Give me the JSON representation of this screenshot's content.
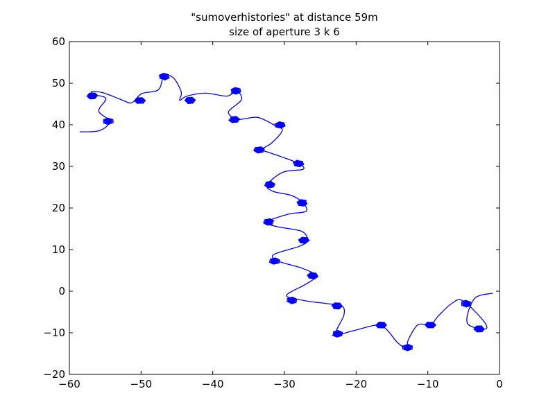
{
  "chart_data": {
    "type": "line",
    "title": "\"sumoverhistories\" at distance 59m",
    "subtitle": "size of aperture 3 k 6",
    "xlabel": "",
    "ylabel": "",
    "xlim": [
      -60,
      0
    ],
    "ylim": [
      -20,
      60
    ],
    "grid": false,
    "xticks": [
      -60,
      -50,
      -40,
      -30,
      -20,
      -10,
      0
    ],
    "yticks": [
      -20,
      -10,
      0,
      10,
      20,
      30,
      40,
      50,
      60
    ],
    "xtick_labels": [
      "−60",
      "−50",
      "−40",
      "−30",
      "−20",
      "−10",
      "0"
    ],
    "ytick_labels": [
      "−20",
      "−10",
      "0",
      "10",
      "20",
      "30",
      "40",
      "50",
      "60"
    ],
    "series": [
      {
        "color": "#0000ff",
        "spiral_centers": [
          [
            -56.8,
            46.9
          ],
          [
            -54.6,
            40.8
          ],
          [
            -50.2,
            45.8
          ],
          [
            -46.8,
            51.6
          ],
          [
            -43.2,
            45.9
          ],
          [
            -36.8,
            48.2
          ],
          [
            -37.0,
            41.3
          ],
          [
            -30.6,
            40.0
          ],
          [
            -33.5,
            34.0
          ],
          [
            -28.0,
            30.7
          ],
          [
            -32.0,
            25.6
          ],
          [
            -27.5,
            21.2
          ],
          [
            -32.2,
            16.6
          ],
          [
            -27.3,
            12.2
          ],
          [
            -31.4,
            7.2
          ],
          [
            -26.1,
            3.7
          ],
          [
            -29.0,
            -2.2
          ],
          [
            -22.7,
            -3.5
          ],
          [
            -22.6,
            -10.2
          ],
          [
            -16.5,
            -8.1
          ],
          [
            -12.8,
            -13.5
          ],
          [
            -9.6,
            -8.1
          ],
          [
            -4.6,
            -3.0
          ],
          [
            -2.8,
            -9.1
          ]
        ],
        "x": [
          -58.5,
          -55.8,
          -54.4,
          -55.9,
          -54.9,
          -56.4,
          -56.9,
          -55.3,
          -52.7,
          -51.3,
          -49.9,
          -47.6,
          -46.8,
          -45.5,
          -44.4,
          -44.6,
          -43.6,
          -41.0,
          -38.0,
          -36.7,
          -36.0,
          -37.8,
          -36.5,
          -33.8,
          -31.5,
          -30.3,
          -31.8,
          -33.4,
          -33.0,
          -30.4,
          -28.0,
          -27.4,
          -30.2,
          -32.4,
          -31.6,
          -29.0,
          -27.4,
          -27.0,
          -29.5,
          -32.5,
          -31.0,
          -27.6,
          -26.8,
          -27.9,
          -31.5,
          -30.8,
          -27.5,
          -25.6,
          -27.0,
          -29.7,
          -27.4,
          -24.0,
          -22.0,
          -21.7,
          -22.8,
          -20.4,
          -17.0,
          -15.7,
          -14.2,
          -13.0,
          -12.7,
          -11.4,
          -9.6,
          -8.6,
          -6.7,
          -5.1,
          -2.2,
          -2.0,
          -4.5,
          -3.5,
          -1.0
        ],
        "y": [
          38.3,
          38.6,
          40.8,
          43.3,
          46.3,
          47.2,
          48.0,
          47.7,
          46.0,
          45.3,
          47.5,
          48.4,
          51.7,
          51.3,
          47.9,
          45.9,
          46.9,
          47.6,
          46.9,
          48.2,
          46.0,
          43.1,
          41.3,
          41.8,
          40.0,
          38.7,
          35.6,
          34.0,
          33.8,
          32.3,
          30.7,
          29.3,
          28.6,
          25.6,
          24.0,
          23.0,
          21.2,
          19.2,
          18.5,
          16.6,
          15.5,
          14.4,
          12.2,
          10.8,
          8.8,
          7.2,
          5.5,
          3.7,
          1.7,
          -1.0,
          -2.2,
          -3.0,
          -3.5,
          -5.7,
          -10.2,
          -9.5,
          -8.1,
          -9.3,
          -12.4,
          -13.5,
          -11.6,
          -8.1,
          -8.1,
          -6.1,
          -3.0,
          -2.3,
          -7.2,
          -9.1,
          -7.6,
          -1.8,
          -0.5
        ]
      }
    ]
  }
}
